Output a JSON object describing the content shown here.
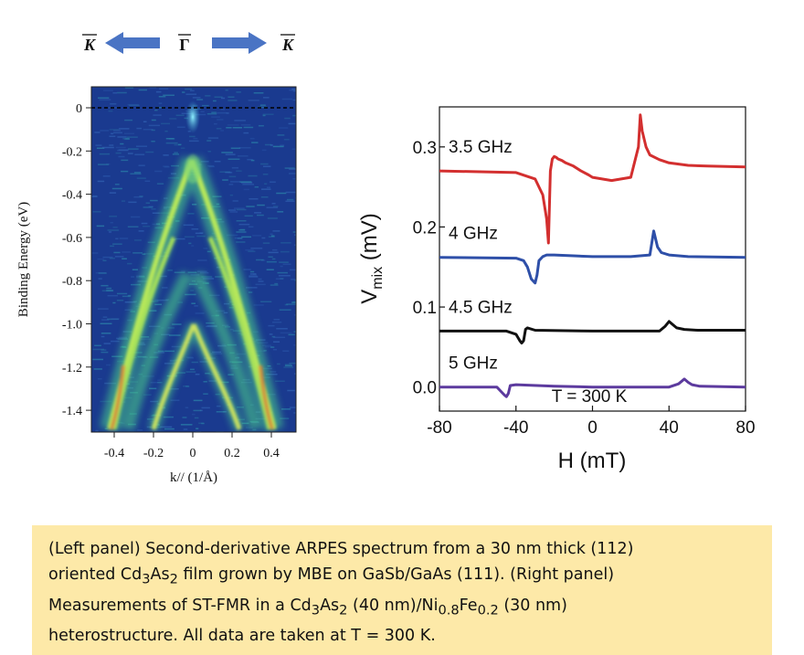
{
  "left_panel": {
    "direction": {
      "left_label": "K",
      "center_label": "Γ",
      "right_label": "K"
    },
    "ylabel": "Binding Energy (eV)",
    "xlabel": "k// (1/Å)",
    "yticks": [
      "0",
      "-0.2",
      "-0.4",
      "-0.6",
      "-0.8",
      "-1.0",
      "-1.2",
      "-1.4"
    ],
    "xticks": [
      "-0.4",
      "-0.2",
      "0",
      "0.2",
      "0.4"
    ],
    "colors": {
      "background": "#1a3a8f",
      "band_outer": "#6be06b",
      "band_core": "#e0a830"
    }
  },
  "chart_data": {
    "type": "line",
    "xlabel": "H (mT)",
    "ylabel": "V",
    "ylabel_sub": "mix",
    "ylabel_unit": " (mV)",
    "xlim": [
      -80,
      80
    ],
    "ylim": [
      -0.03,
      0.35
    ],
    "xticks": [
      "-80",
      "-40",
      "0",
      "40",
      "80"
    ],
    "yticks": [
      "0.0",
      "0.1",
      "0.2",
      "0.3"
    ],
    "annotation": "T = 300 K",
    "series": [
      {
        "name": "3.5 GHz",
        "color": "#d32f2f",
        "x": [
          -80,
          -40,
          -30,
          -26,
          -24,
          -23,
          -22,
          -21,
          -20,
          -19,
          -18,
          -16,
          -14,
          -10,
          -6,
          -2,
          0,
          10,
          20,
          24,
          25,
          26,
          28,
          30,
          35,
          40,
          50,
          60,
          80
        ],
        "y": [
          0.27,
          0.268,
          0.26,
          0.24,
          0.21,
          0.18,
          0.27,
          0.285,
          0.288,
          0.287,
          0.285,
          0.283,
          0.28,
          0.276,
          0.27,
          0.265,
          0.262,
          0.258,
          0.262,
          0.3,
          0.34,
          0.32,
          0.3,
          0.29,
          0.284,
          0.28,
          0.277,
          0.276,
          0.275
        ]
      },
      {
        "name": "4 GHz",
        "color": "#2e4fa8",
        "x": [
          -80,
          -40,
          -36,
          -34,
          -32,
          -30,
          -29,
          -28,
          -26,
          -24,
          -20,
          -10,
          0,
          20,
          30,
          31,
          32,
          33,
          34,
          36,
          40,
          50,
          80
        ],
        "y": [
          0.162,
          0.161,
          0.158,
          0.15,
          0.135,
          0.13,
          0.14,
          0.158,
          0.163,
          0.165,
          0.165,
          0.164,
          0.163,
          0.163,
          0.165,
          0.18,
          0.195,
          0.185,
          0.175,
          0.168,
          0.165,
          0.163,
          0.162
        ]
      },
      {
        "name": "4.5 GHz",
        "color": "#111111",
        "x": [
          -80,
          -45,
          -40,
          -38,
          -37,
          -36,
          -35,
          -34,
          -30,
          0,
          35,
          38,
          40,
          42,
          44,
          48,
          55,
          80
        ],
        "y": [
          0.07,
          0.07,
          0.066,
          0.058,
          0.055,
          0.058,
          0.072,
          0.074,
          0.071,
          0.07,
          0.07,
          0.076,
          0.082,
          0.078,
          0.074,
          0.072,
          0.071,
          0.071
        ]
      },
      {
        "name": "5 GHz",
        "color": "#5c3a9e",
        "x": [
          -80,
          -50,
          -48,
          -46,
          -45,
          -44,
          -43,
          -40,
          -20,
          0,
          40,
          45,
          47,
          48,
          50,
          52,
          56,
          80
        ],
        "y": [
          0.0,
          0.0,
          -0.005,
          -0.01,
          -0.012,
          -0.008,
          0.002,
          0.003,
          0.001,
          0.0,
          0.0,
          0.004,
          0.008,
          0.01,
          0.006,
          0.003,
          0.001,
          0.0
        ]
      }
    ]
  },
  "caption": {
    "line1": "(Left panel) Second-derivative ARPES spectrum from a 30 nm thick (112)",
    "line2_a": "oriented Cd",
    "line2_sub1": "3",
    "line2_b": "As",
    "line2_sub2": "2",
    "line2_c": " film grown by MBE on GaSb/GaAs (111).  (Right panel)",
    "line3_a": "Measurements of ST-FMR in a Cd",
    "line3_sub1": "3",
    "line3_b": "As",
    "line3_sub2": "2",
    "line3_c": " (40 nm)/Ni",
    "line3_sub3": "0.8",
    "line3_d": "Fe",
    "line3_sub4": "0.2",
    "line3_e": " (30 nm)",
    "line4": "heterostructure. All data are taken at T = 300 K."
  }
}
